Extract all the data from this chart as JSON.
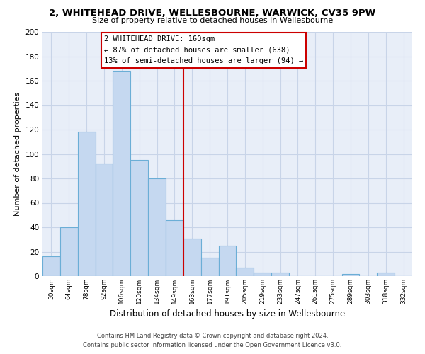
{
  "title": "2, WHITEHEAD DRIVE, WELLESBOURNE, WARWICK, CV35 9PW",
  "subtitle": "Size of property relative to detached houses in Wellesbourne",
  "xlabel": "Distribution of detached houses by size in Wellesbourne",
  "ylabel": "Number of detached properties",
  "bar_labels": [
    "50sqm",
    "64sqm",
    "78sqm",
    "92sqm",
    "106sqm",
    "120sqm",
    "134sqm",
    "149sqm",
    "163sqm",
    "177sqm",
    "191sqm",
    "205sqm",
    "219sqm",
    "233sqm",
    "247sqm",
    "261sqm",
    "275sqm",
    "289sqm",
    "303sqm",
    "318sqm",
    "332sqm"
  ],
  "bar_values": [
    16,
    40,
    118,
    92,
    168,
    95,
    80,
    46,
    31,
    15,
    25,
    7,
    3,
    3,
    0,
    0,
    0,
    2,
    0,
    3,
    0
  ],
  "bar_color": "#c5d8f0",
  "bar_edge_color": "#6baed6",
  "vline_color": "#cc0000",
  "ylim": [
    0,
    200
  ],
  "yticks": [
    0,
    20,
    40,
    60,
    80,
    100,
    120,
    140,
    160,
    180,
    200
  ],
  "annotation_title": "2 WHITEHEAD DRIVE: 160sqm",
  "annotation_line1": "← 87% of detached houses are smaller (638)",
  "annotation_line2": "13% of semi-detached houses are larger (94) →",
  "annotation_box_color": "#ffffff",
  "annotation_box_edge": "#cc0000",
  "footer_line1": "Contains HM Land Registry data © Crown copyright and database right 2024.",
  "footer_line2": "Contains public sector information licensed under the Open Government Licence v3.0.",
  "background_color": "#ffffff",
  "grid_color": "#c8d4e8",
  "plot_bg_color": "#e8eef8"
}
